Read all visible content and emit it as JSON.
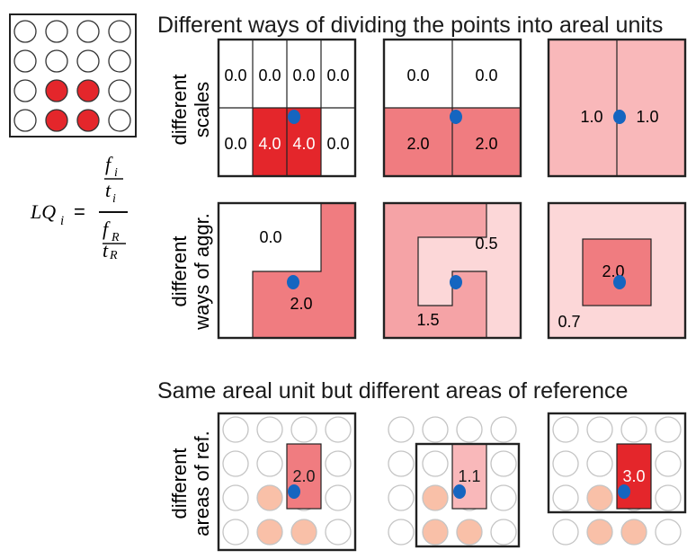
{
  "title_top": "Different ways of dividing the points into areal units",
  "title_bottom": "Same areal unit but different areas of reference",
  "row_labels": {
    "scales": [
      "different",
      "scales"
    ],
    "aggregation": [
      "different",
      "ways of aggr."
    ],
    "reference": [
      "different",
      "areas of  ref."
    ]
  },
  "formula": {
    "lhs": "LQ",
    "sub_i": "i",
    "equals": "=",
    "f": "f",
    "t": "t",
    "sub_R": "R"
  },
  "grid_pattern": {
    "rows": 4,
    "cols": 4,
    "highlighted_cells": [
      "r3c2",
      "r3c3",
      "r4c2",
      "r4c3"
    ]
  },
  "scale_panels": {
    "four_by_two": [
      "0.0",
      "0.0",
      "0.0",
      "0.0",
      "0.0",
      "4.0",
      "4.0",
      "0.0"
    ],
    "two_by_two": [
      "0.0",
      "0.0",
      "2.0",
      "2.0"
    ],
    "two_columns": [
      "1.0",
      "1.0"
    ]
  },
  "aggregation_panels": {
    "l_shape": [
      "0.0",
      "2.0"
    ],
    "s_shape": [
      "0.5",
      "1.5"
    ],
    "center_square": [
      "2.0",
      "0.7"
    ]
  },
  "reference_panels": [
    "2.0",
    "1.1",
    "3.0"
  ],
  "colors": {
    "strong_red": "#e4262b",
    "mid_red": "#f07c80",
    "light_red": "#f9b8ba",
    "pale_red": "#fcd7d8",
    "very_pale": "#fdeaea",
    "point_peach": "#f9c0a8",
    "focal_point": "#1565c0",
    "outline": "#222222"
  }
}
